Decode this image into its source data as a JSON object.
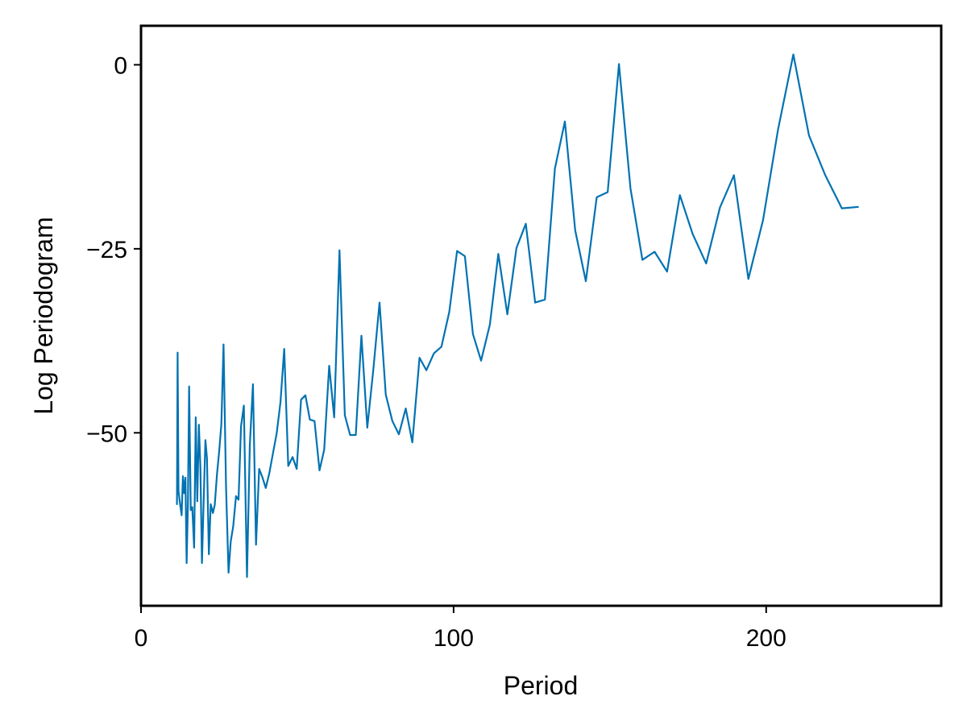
{
  "chart_data": {
    "type": "line",
    "title": "",
    "xlabel": "Period",
    "ylabel": "Log Periodogram",
    "xlim": [
      0,
      256
    ],
    "ylim": [
      -73.5,
      5.3
    ],
    "x_ticks": [
      0,
      100,
      200
    ],
    "y_ticks": [
      0,
      -25,
      -50
    ],
    "x_tick_labels": [
      "0",
      "100",
      "200"
    ],
    "y_tick_labels": [
      "0",
      "−25",
      "−50"
    ],
    "grid": false,
    "legend": "none",
    "line_color": "#0072b2",
    "series": [
      {
        "points": [
          [
            11.5,
            -59.8
          ],
          [
            11.7,
            -39.1
          ],
          [
            12.0,
            -57.9
          ],
          [
            12.5,
            -59.7
          ],
          [
            13.0,
            -61.2
          ],
          [
            13.4,
            -55.9
          ],
          [
            13.8,
            -58.2
          ],
          [
            14.2,
            -56.1
          ],
          [
            14.6,
            -67.7
          ],
          [
            15.0,
            -59.6
          ],
          [
            15.4,
            -43.7
          ],
          [
            15.9,
            -60.5
          ],
          [
            16.4,
            -60.1
          ],
          [
            17.0,
            -65.6
          ],
          [
            17.5,
            -47.9
          ],
          [
            18.0,
            -59.3
          ],
          [
            18.5,
            -48.9
          ],
          [
            19.0,
            -54.7
          ],
          [
            19.5,
            -67.7
          ],
          [
            20.0,
            -59.8
          ],
          [
            20.6,
            -51.0
          ],
          [
            21.1,
            -53.4
          ],
          [
            21.7,
            -66.5
          ],
          [
            22.3,
            -59.7
          ],
          [
            23.0,
            -60.9
          ],
          [
            23.6,
            -59.8
          ],
          [
            24.3,
            -55.6
          ],
          [
            25.0,
            -52.5
          ],
          [
            25.7,
            -48.8
          ],
          [
            26.4,
            -38.0
          ],
          [
            27.2,
            -57.3
          ],
          [
            28.0,
            -69.0
          ],
          [
            28.7,
            -64.8
          ],
          [
            29.5,
            -62.7
          ],
          [
            30.4,
            -58.6
          ],
          [
            31.2,
            -59.1
          ],
          [
            32.0,
            -49.1
          ],
          [
            32.9,
            -46.3
          ],
          [
            33.9,
            -69.6
          ],
          [
            34.8,
            -51.7
          ],
          [
            35.8,
            -43.4
          ],
          [
            36.8,
            -65.2
          ],
          [
            37.8,
            -54.9
          ],
          [
            38.8,
            -56.0
          ],
          [
            39.9,
            -57.5
          ],
          [
            41.0,
            -55.6
          ],
          [
            42.2,
            -52.8
          ],
          [
            43.4,
            -50.1
          ],
          [
            44.6,
            -45.9
          ],
          [
            45.8,
            -38.6
          ],
          [
            47.1,
            -54.5
          ],
          [
            48.5,
            -53.3
          ],
          [
            49.8,
            -54.9
          ],
          [
            51.2,
            -45.5
          ],
          [
            52.6,
            -44.9
          ],
          [
            54.0,
            -48.2
          ],
          [
            55.5,
            -48.4
          ],
          [
            57.1,
            -55.1
          ],
          [
            58.6,
            -52.3
          ],
          [
            60.2,
            -40.9
          ],
          [
            61.8,
            -47.9
          ],
          [
            63.5,
            -25.2
          ],
          [
            65.2,
            -47.6
          ],
          [
            66.9,
            -50.3
          ],
          [
            68.7,
            -50.3
          ],
          [
            70.5,
            -36.8
          ],
          [
            72.4,
            -49.3
          ],
          [
            74.3,
            -41.5
          ],
          [
            76.3,
            -32.3
          ],
          [
            78.3,
            -44.8
          ],
          [
            80.4,
            -48.4
          ],
          [
            82.5,
            -50.2
          ],
          [
            84.7,
            -46.7
          ],
          [
            86.8,
            -51.3
          ],
          [
            89.1,
            -39.8
          ],
          [
            91.3,
            -41.5
          ],
          [
            93.7,
            -39.2
          ],
          [
            96.1,
            -38.3
          ],
          [
            98.6,
            -33.6
          ],
          [
            101.1,
            -25.3
          ],
          [
            103.6,
            -26.0
          ],
          [
            106.2,
            -36.6
          ],
          [
            108.8,
            -40.2
          ],
          [
            111.6,
            -35.3
          ],
          [
            114.3,
            -25.7
          ],
          [
            117.2,
            -33.9
          ],
          [
            120.1,
            -24.9
          ],
          [
            123.1,
            -21.6
          ],
          [
            126.1,
            -32.3
          ],
          [
            129.2,
            -31.9
          ],
          [
            132.4,
            -14.1
          ],
          [
            135.6,
            -7.7
          ],
          [
            138.9,
            -22.5
          ],
          [
            142.3,
            -29.4
          ],
          [
            145.8,
            -18.0
          ],
          [
            149.3,
            -17.3
          ],
          [
            152.9,
            0.1
          ],
          [
            156.6,
            -16.8
          ],
          [
            160.4,
            -26.5
          ],
          [
            164.3,
            -25.4
          ],
          [
            168.3,
            -28.1
          ],
          [
            172.4,
            -17.7
          ],
          [
            176.5,
            -23.0
          ],
          [
            180.8,
            -27.0
          ],
          [
            185.2,
            -19.4
          ],
          [
            189.7,
            -15.0
          ],
          [
            194.3,
            -29.1
          ],
          [
            199.0,
            -21.1
          ],
          [
            203.8,
            -8.8
          ],
          [
            208.7,
            1.4
          ],
          [
            213.7,
            -9.6
          ],
          [
            218.9,
            -15.0
          ],
          [
            224.2,
            -19.5
          ],
          [
            229.6,
            -19.3
          ]
        ]
      }
    ]
  }
}
